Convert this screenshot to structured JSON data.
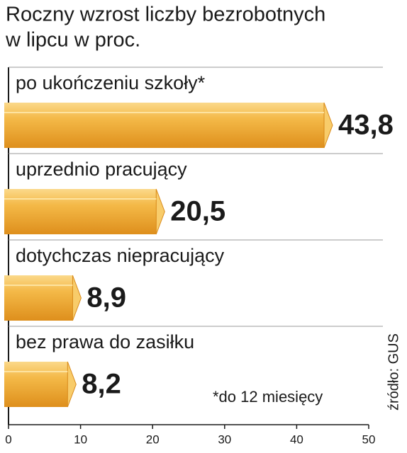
{
  "chart_data": {
    "type": "bar",
    "orientation": "horizontal",
    "title": [
      "Roczny wzrost liczby bezrobotnych",
      "w lipcu w proc."
    ],
    "categories": [
      "po ukończeniu szkoły*",
      "uprzednio pracujący",
      "dotychczas niepracujący",
      "bez prawa do zasiłku"
    ],
    "values": [
      43.8,
      20.5,
      8.9,
      8.2
    ],
    "value_labels": [
      "43,8",
      "20,5",
      "8,9",
      "8,2"
    ],
    "value_label_colors": [
      "#c8102e",
      "#1a1a1a",
      "#1a1a1a",
      "#1a1a1a"
    ],
    "color": "#efa82e",
    "xlim": [
      0,
      50
    ],
    "xticks": [
      0,
      10,
      20,
      30,
      40,
      50
    ],
    "note": "*do 12 miesięcy",
    "source": "źródło: GUS"
  }
}
